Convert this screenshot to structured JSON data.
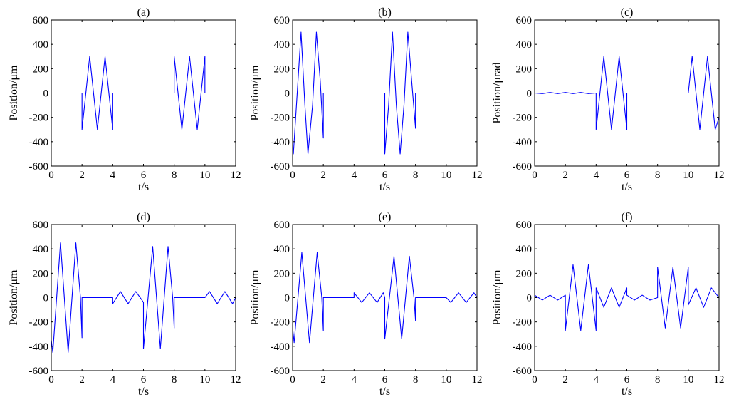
{
  "figure": {
    "colors": {
      "line": "#0000ff",
      "axis": "#000000",
      "background": "#ffffff"
    }
  },
  "chart_data": [
    {
      "type": "line",
      "title": "(a)",
      "xlabel": "t/s",
      "ylabel": "Position/μm",
      "xlim": [
        0,
        12
      ],
      "ylim": [
        -600,
        600
      ],
      "xticks": [
        0,
        2,
        4,
        6,
        8,
        10,
        12
      ],
      "yticks": [
        -600,
        -400,
        -200,
        0,
        200,
        400,
        600
      ],
      "grid": false,
      "series": [
        {
          "color": "#0000ff",
          "x": [
            0,
            1,
            2,
            2,
            2.5,
            3,
            3.5,
            4,
            4,
            5,
            6,
            7,
            8,
            8,
            8.5,
            9,
            9.5,
            10,
            10,
            11,
            12
          ],
          "y": [
            0,
            0,
            0,
            -300,
            300,
            -300,
            300,
            -300,
            0,
            0,
            0,
            0,
            0,
            300,
            -300,
            300,
            -300,
            300,
            0,
            0,
            0
          ]
        }
      ]
    },
    {
      "type": "line",
      "title": "(b)",
      "xlabel": "t/s",
      "ylabel": "Position/μm",
      "xlim": [
        0,
        12
      ],
      "ylim": [
        -600,
        600
      ],
      "xticks": [
        0,
        2,
        4,
        6,
        8,
        10,
        12
      ],
      "yticks": [
        -600,
        -400,
        -200,
        0,
        200,
        400,
        600
      ],
      "grid": false,
      "series": [
        {
          "color": "#0000ff",
          "x": [
            0,
            0.05,
            0.25,
            0.55,
            0.8,
            1.0,
            1.3,
            1.55,
            1.8,
            2.0,
            2.0,
            3,
            4,
            5,
            6,
            6,
            6.25,
            6.5,
            6.75,
            7.0,
            7.25,
            7.5,
            7.75,
            8.0,
            8.0,
            9,
            10,
            11,
            12
          ],
          "y": [
            -400,
            -500,
            -100,
            500,
            -100,
            -500,
            -100,
            500,
            100,
            -370,
            0,
            0,
            0,
            0,
            0,
            -500,
            -100,
            500,
            -100,
            -500,
            -100,
            500,
            100,
            -290,
            0,
            0,
            0,
            0,
            0
          ]
        }
      ]
    },
    {
      "type": "line",
      "title": "(c)",
      "xlabel": "t/s",
      "ylabel": "Position/μrad",
      "xlim": [
        0,
        12
      ],
      "ylim": [
        -600,
        600
      ],
      "xticks": [
        0,
        2,
        4,
        6,
        8,
        10,
        12
      ],
      "yticks": [
        -600,
        -400,
        -200,
        0,
        200,
        400,
        600
      ],
      "grid": false,
      "series": [
        {
          "color": "#0000ff",
          "x": [
            0,
            0.5,
            1,
            1.5,
            2,
            2.5,
            3,
            3.5,
            4,
            4,
            4.5,
            5,
            5.5,
            6,
            6,
            7,
            8,
            9,
            10,
            10.25,
            10.75,
            11.25,
            11.75,
            12
          ],
          "y": [
            0,
            -5,
            5,
            -5,
            5,
            -5,
            5,
            -5,
            0,
            -300,
            300,
            -300,
            300,
            -300,
            0,
            0,
            0,
            0,
            0,
            300,
            -300,
            300,
            -300,
            -200
          ]
        }
      ]
    },
    {
      "type": "line",
      "title": "(d)",
      "xlabel": "t/s",
      "ylabel": "Position/μm",
      "xlim": [
        0,
        12
      ],
      "ylim": [
        -600,
        600
      ],
      "xticks": [
        0,
        2,
        4,
        6,
        8,
        10,
        12
      ],
      "yticks": [
        -600,
        -400,
        -200,
        0,
        200,
        400,
        600
      ],
      "grid": false,
      "series": [
        {
          "color": "#0000ff",
          "x": [
            0,
            0.1,
            0.6,
            1.1,
            1.6,
            1.9,
            2.0,
            2.0,
            3,
            4,
            4,
            4.5,
            5.0,
            5.5,
            5.9,
            6.0,
            6.0,
            6.6,
            7.1,
            7.6,
            7.9,
            8.0,
            8.0,
            9,
            10,
            10.3,
            10.8,
            11.3,
            11.8,
            12
          ],
          "y": [
            -350,
            -450,
            450,
            -450,
            450,
            0,
            -330,
            0,
            0,
            0,
            -50,
            50,
            -50,
            50,
            -20,
            -40,
            -420,
            420,
            -420,
            420,
            0,
            -250,
            0,
            0,
            0,
            50,
            -50,
            50,
            -50,
            0
          ]
        }
      ]
    },
    {
      "type": "line",
      "title": "(e)",
      "xlabel": "t/s",
      "ylabel": "Position/μm",
      "xlim": [
        0,
        12
      ],
      "ylim": [
        -600,
        600
      ],
      "xticks": [
        0,
        2,
        4,
        6,
        8,
        10,
        12
      ],
      "yticks": [
        -600,
        -400,
        -200,
        0,
        200,
        400,
        600
      ],
      "grid": false,
      "series": [
        {
          "color": "#0000ff",
          "x": [
            0,
            0.1,
            0.6,
            1.1,
            1.6,
            1.9,
            2.0,
            2.0,
            3,
            4,
            4,
            4.5,
            5.0,
            5.5,
            5.9,
            6.0,
            6.0,
            6.6,
            7.1,
            7.6,
            7.9,
            8.0,
            8.0,
            9,
            10,
            10.3,
            10.8,
            11.3,
            11.8,
            12
          ],
          "y": [
            -250,
            -370,
            370,
            -370,
            370,
            0,
            -270,
            0,
            0,
            0,
            40,
            -40,
            40,
            -40,
            40,
            0,
            -340,
            340,
            -340,
            340,
            0,
            -190,
            0,
            0,
            0,
            -40,
            40,
            -40,
            40,
            0
          ]
        }
      ]
    },
    {
      "type": "line",
      "title": "(f)",
      "xlabel": "t/s",
      "ylabel": "Position/μm",
      "xlim": [
        0,
        12
      ],
      "ylim": [
        -600,
        600
      ],
      "xticks": [
        0,
        2,
        4,
        6,
        8,
        10,
        12
      ],
      "yticks": [
        -600,
        -400,
        -200,
        0,
        200,
        400,
        600
      ],
      "grid": false,
      "series": [
        {
          "color": "#0000ff",
          "x": [
            0,
            0.5,
            1.0,
            1.5,
            2.0,
            2.0,
            2.5,
            3.0,
            3.5,
            4.0,
            4.0,
            4.5,
            5.0,
            5.5,
            6.0,
            6.0,
            6.5,
            7.0,
            7.5,
            8.0,
            8.0,
            8.5,
            9.0,
            9.5,
            10.0,
            10.0,
            10.5,
            11.0,
            11.5,
            12
          ],
          "y": [
            20,
            -20,
            20,
            -20,
            20,
            -270,
            270,
            -270,
            270,
            -270,
            80,
            -80,
            80,
            -80,
            80,
            20,
            -20,
            20,
            -20,
            0,
            250,
            -250,
            250,
            -250,
            250,
            -60,
            80,
            -80,
            80,
            0
          ]
        }
      ]
    }
  ]
}
